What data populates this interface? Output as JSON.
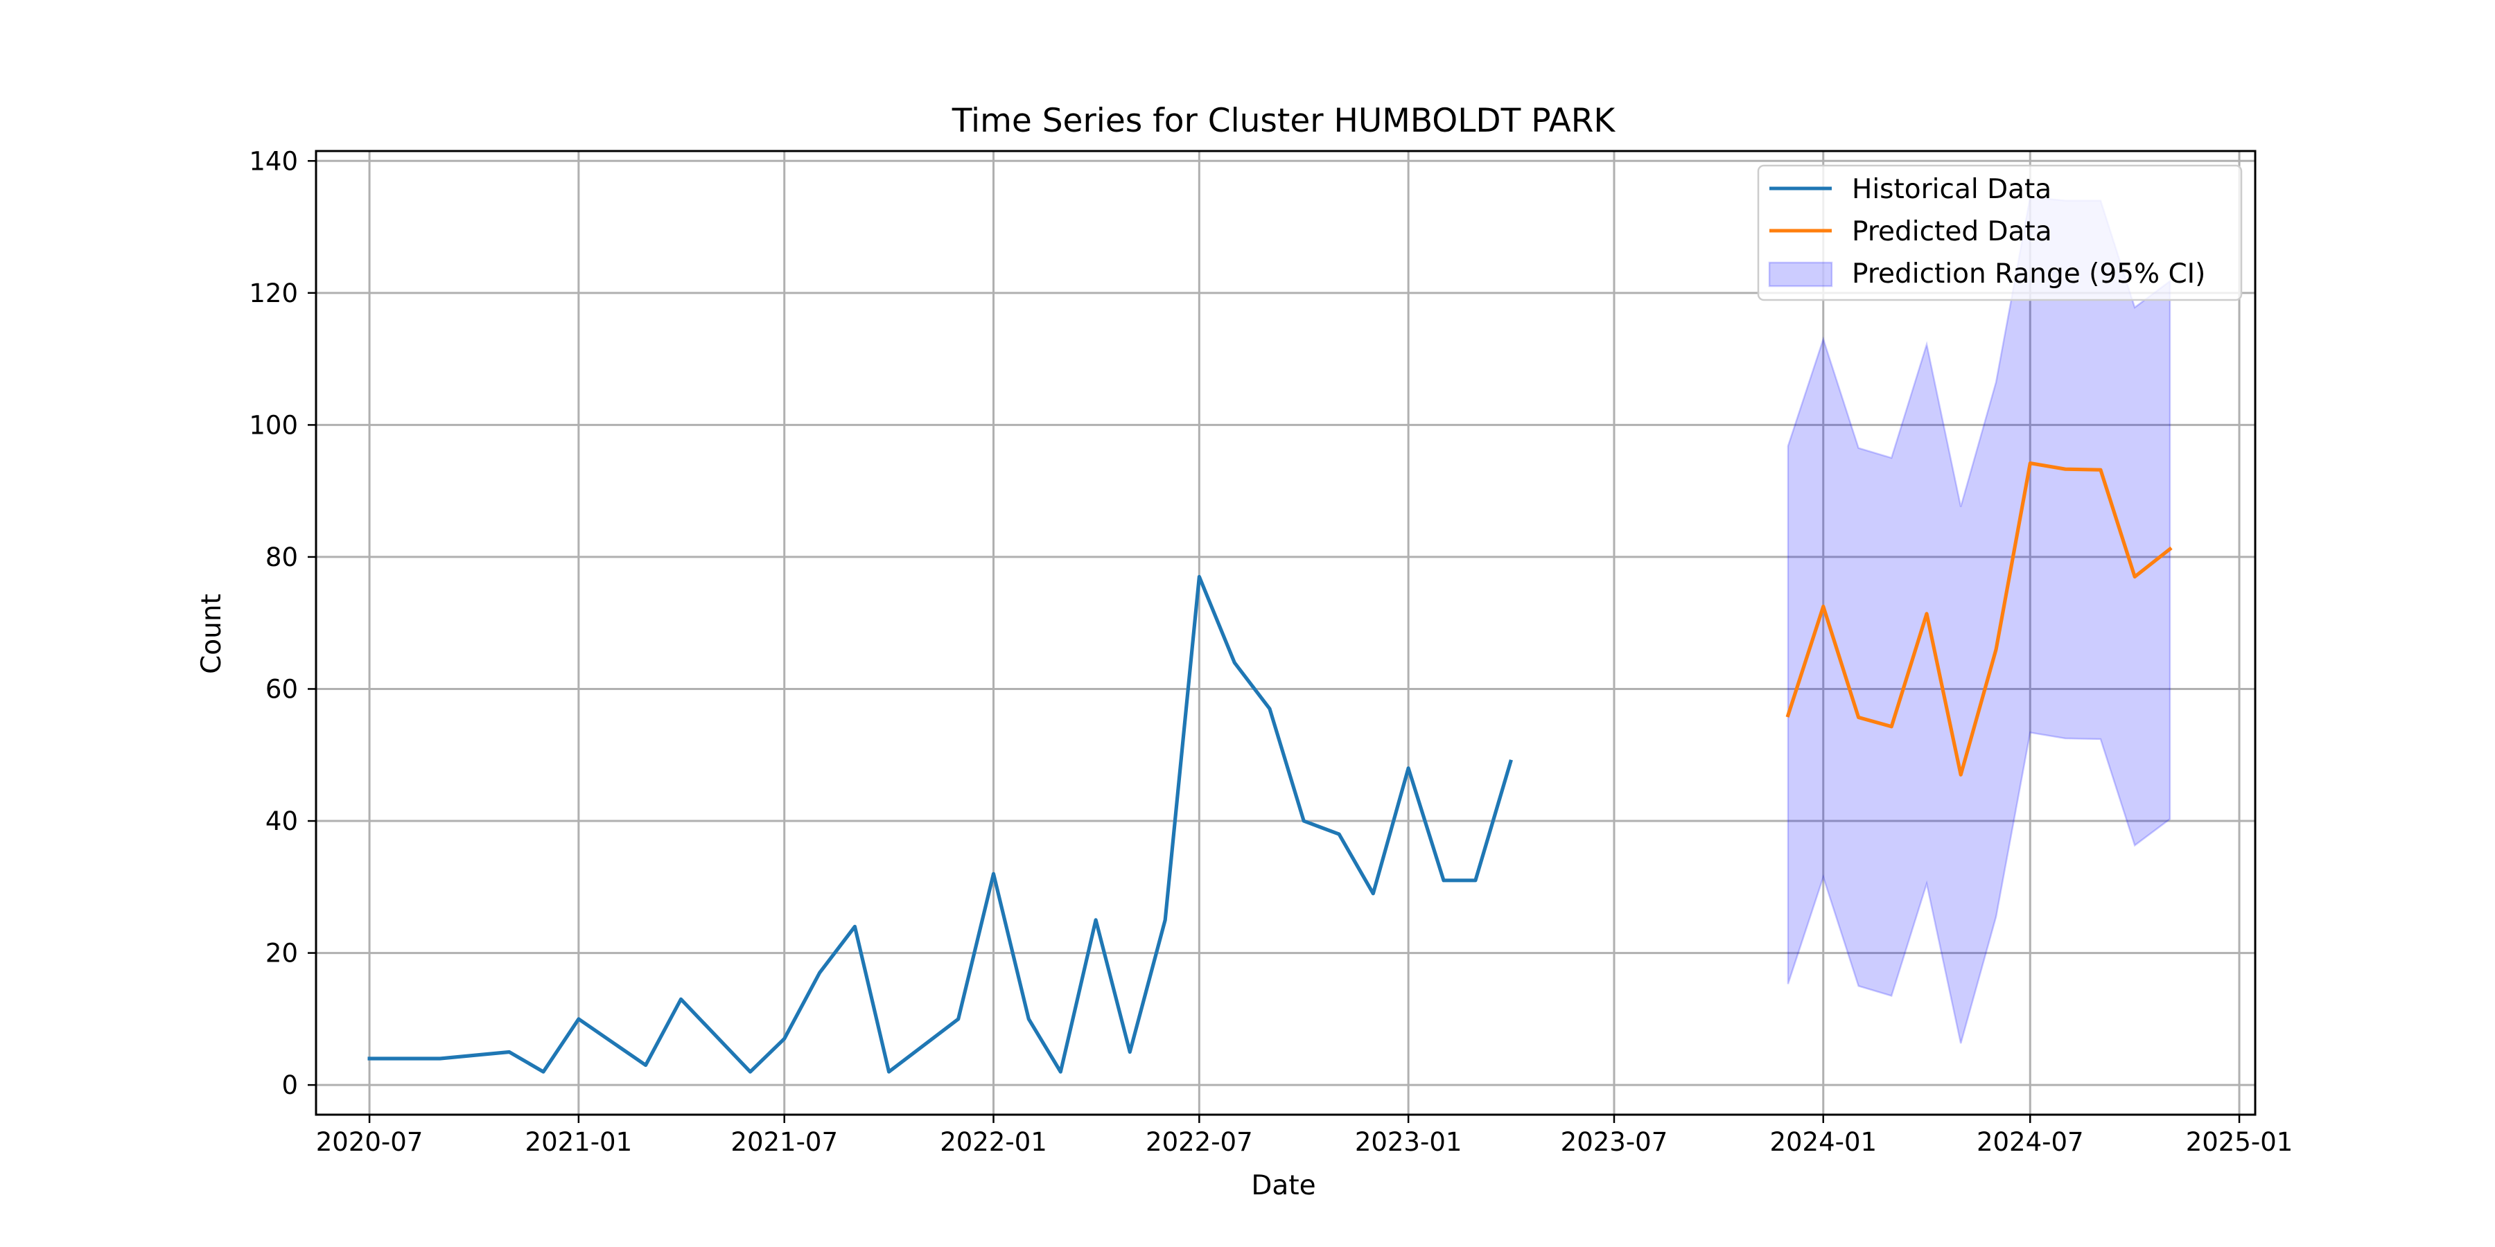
{
  "chart_data": {
    "type": "line",
    "title": "Time Series for Cluster HUMBOLDT PARK",
    "xlabel": "Date",
    "ylabel": "Count",
    "xlim": [
      "2020-05-15",
      "2025-01-15"
    ],
    "ylim": [
      -4.5,
      141.5
    ],
    "grid": true,
    "legend_position": "top-right",
    "x_ticks": [
      "2020-07-01",
      "2021-01-01",
      "2021-07-01",
      "2022-01-01",
      "2022-07-01",
      "2023-01-01",
      "2023-07-01",
      "2024-01-01",
      "2024-07-01",
      "2025-01-01"
    ],
    "x_tick_labels": [
      "2020-07",
      "2021-01",
      "2021-07",
      "2022-01",
      "2022-07",
      "2023-01",
      "2023-07",
      "2024-01",
      "2024-07",
      "2025-01"
    ],
    "y_ticks": [
      0,
      20,
      40,
      60,
      80,
      100,
      120,
      140
    ],
    "y_tick_labels": [
      "0",
      "20",
      "40",
      "60",
      "80",
      "100",
      "120",
      "140"
    ],
    "series": [
      {
        "name": "Historical Data",
        "color": "#1f77b4",
        "x": [
          "2020-07-01",
          "2020-09-01",
          "2020-11-01",
          "2020-12-01",
          "2021-01-01",
          "2021-03-01",
          "2021-04-01",
          "2021-06-01",
          "2021-07-01",
          "2021-08-01",
          "2021-09-01",
          "2021-10-01",
          "2021-12-01",
          "2022-01-01",
          "2022-02-01",
          "2022-03-01",
          "2022-04-01",
          "2022-05-01",
          "2022-06-01",
          "2022-07-01",
          "2022-08-01",
          "2022-09-01",
          "2022-10-01",
          "2022-11-01",
          "2022-12-01",
          "2023-01-01",
          "2023-02-01",
          "2023-03-01",
          "2023-04-01"
        ],
        "values": [
          4,
          4,
          5,
          2,
          10,
          3,
          13,
          2,
          7,
          17,
          24,
          2,
          10,
          32,
          10,
          2,
          25,
          5,
          25,
          77,
          64,
          57,
          40,
          38,
          29,
          48,
          31,
          31,
          49
        ]
      },
      {
        "name": "Predicted Data",
        "color": "#ff7f0e",
        "x": [
          "2023-12-01",
          "2024-01-01",
          "2024-02-01",
          "2024-03-01",
          "2024-04-01",
          "2024-05-01",
          "2024-06-01",
          "2024-07-01",
          "2024-08-01",
          "2024-09-01",
          "2024-10-01",
          "2024-11-01"
        ],
        "values": [
          56,
          72.5,
          55.7,
          54.3,
          71.4,
          47,
          66,
          94.2,
          93.3,
          93.2,
          77,
          81.2
        ]
      }
    ],
    "interval": {
      "name": "Prediction Range (95% CI)",
      "color": "#0000ff",
      "x": [
        "2023-12-01",
        "2024-01-01",
        "2024-02-01",
        "2024-03-01",
        "2024-04-01",
        "2024-05-01",
        "2024-06-01",
        "2024-07-01",
        "2024-08-01",
        "2024-09-01",
        "2024-10-01",
        "2024-11-01"
      ],
      "lower": [
        15.3,
        31.5,
        15,
        13.5,
        30.5,
        6.3,
        25.5,
        53.4,
        52.5,
        52.4,
        36.3,
        40.3
      ],
      "upper": [
        96.8,
        113,
        96.5,
        95,
        112.2,
        87.6,
        106.5,
        134.5,
        134,
        134,
        117.8,
        121.8
      ]
    }
  }
}
